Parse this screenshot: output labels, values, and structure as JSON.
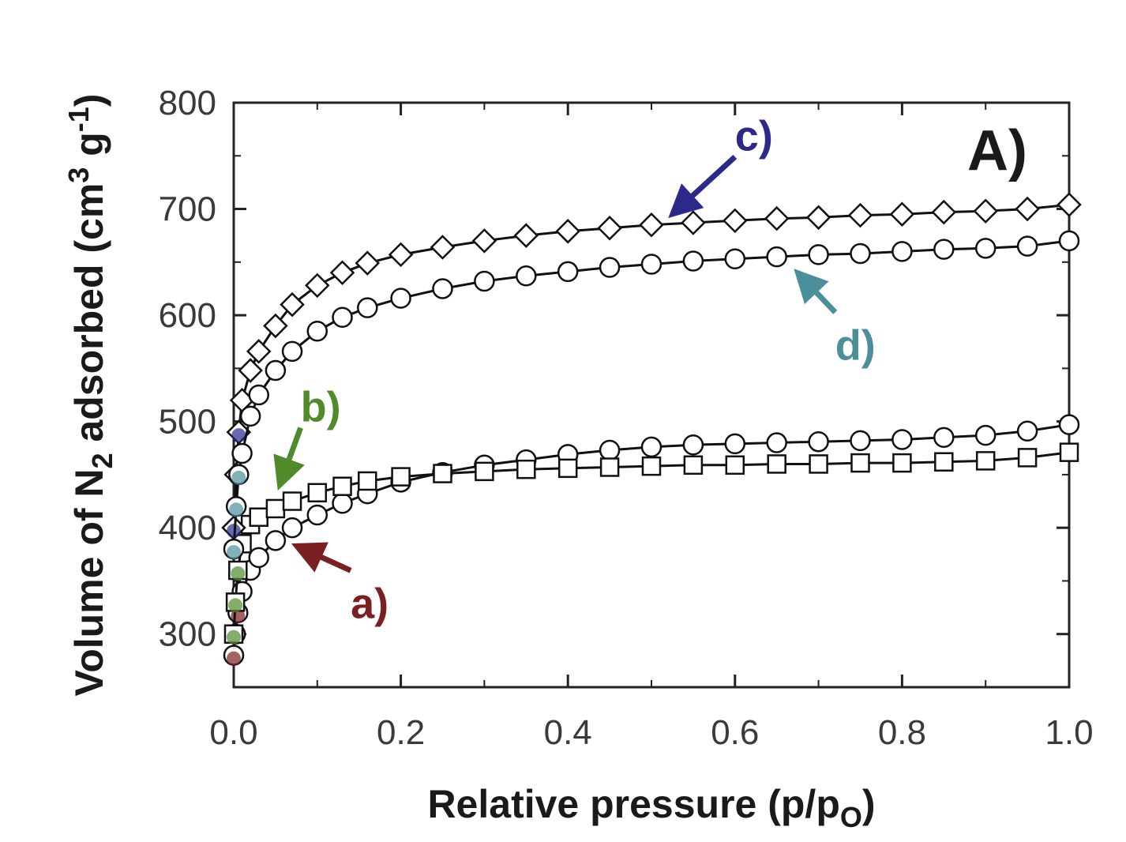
{
  "chart_data": {
    "type": "scatter",
    "title": "",
    "panel_label": "A)",
    "xlabel": "Relative pressure (p/p",
    "xlabel_sub": "O",
    "xlabel_end": ")",
    "ylabel": "Volume of N",
    "ylabel_sub": "2",
    "ylabel_mid": " adsorbed (cm",
    "ylabel_sup1": "3",
    "ylabel_mid2": " g",
    "ylabel_sup2": "-1",
    "ylabel_end": ")",
    "xlim": [
      0.0,
      1.0
    ],
    "ylim": [
      250,
      800
    ],
    "xticks": [
      0.0,
      0.2,
      0.4,
      0.6,
      0.8,
      1.0
    ],
    "xtick_labels": [
      "0.0",
      "0.2",
      "0.4",
      "0.6",
      "0.8",
      "1.0"
    ],
    "yticks": [
      300,
      400,
      500,
      600,
      700,
      800
    ],
    "ytick_labels": [
      "300",
      "400",
      "500",
      "600",
      "700",
      "800"
    ],
    "grid": false,
    "series": [
      {
        "id": "a",
        "label": "a)",
        "marker": "circle",
        "color": "#7a1f22",
        "x": [
          0.0,
          0.002,
          0.005,
          0.01,
          0.02,
          0.03,
          0.05,
          0.07,
          0.1,
          0.13,
          0.16,
          0.2,
          0.25,
          0.3,
          0.35,
          0.4,
          0.45,
          0.5,
          0.55,
          0.6,
          0.65,
          0.7,
          0.75,
          0.8,
          0.85,
          0.9,
          0.95,
          1.0
        ],
        "y": [
          280,
          300,
          320,
          340,
          360,
          372,
          388,
          400,
          412,
          423,
          432,
          443,
          452,
          459,
          464,
          469,
          473,
          476,
          478,
          479,
          480,
          481,
          482,
          483,
          485,
          487,
          491,
          497
        ]
      },
      {
        "id": "b",
        "label": "b)",
        "marker": "square",
        "color": "#4f8a2b",
        "x": [
          0.0,
          0.002,
          0.005,
          0.01,
          0.02,
          0.03,
          0.05,
          0.07,
          0.1,
          0.13,
          0.16,
          0.2,
          0.25,
          0.3,
          0.35,
          0.4,
          0.45,
          0.5,
          0.55,
          0.6,
          0.65,
          0.7,
          0.75,
          0.8,
          0.85,
          0.9,
          0.95,
          1.0
        ],
        "y": [
          300,
          330,
          360,
          385,
          403,
          410,
          418,
          425,
          433,
          439,
          444,
          448,
          451,
          453,
          455,
          456,
          457,
          458,
          459,
          459,
          460,
          460,
          461,
          461,
          462,
          463,
          466,
          471
        ]
      },
      {
        "id": "c",
        "label": "c)",
        "marker": "diamond",
        "color": "#2b2a8a",
        "x": [
          0.0,
          0.003,
          0.006,
          0.01,
          0.02,
          0.03,
          0.05,
          0.07,
          0.1,
          0.13,
          0.16,
          0.2,
          0.25,
          0.3,
          0.35,
          0.4,
          0.45,
          0.5,
          0.55,
          0.6,
          0.65,
          0.7,
          0.75,
          0.8,
          0.85,
          0.9,
          0.95,
          1.0
        ],
        "y": [
          400,
          450,
          490,
          520,
          548,
          566,
          590,
          610,
          628,
          640,
          649,
          657,
          664,
          670,
          675,
          679,
          682,
          685,
          687,
          689,
          691,
          692,
          694,
          695,
          697,
          698,
          700,
          704
        ]
      },
      {
        "id": "d",
        "label": "d)",
        "marker": "circle",
        "color": "#4b8f9a",
        "x": [
          0.0,
          0.003,
          0.006,
          0.01,
          0.02,
          0.03,
          0.05,
          0.07,
          0.1,
          0.13,
          0.16,
          0.2,
          0.25,
          0.3,
          0.35,
          0.4,
          0.45,
          0.5,
          0.55,
          0.6,
          0.65,
          0.7,
          0.75,
          0.8,
          0.85,
          0.9,
          0.95,
          1.0
        ],
        "y": [
          380,
          420,
          450,
          470,
          505,
          525,
          548,
          566,
          585,
          598,
          607,
          616,
          625,
          632,
          637,
          641,
          645,
          648,
          651,
          653,
          655,
          657,
          658,
          660,
          662,
          663,
          665,
          670
        ]
      }
    ],
    "annotations": [
      {
        "text": "a)",
        "color": "#7a1f22",
        "x": 0.14,
        "y": 330,
        "arrow_to_x": 0.075,
        "arrow_to_y": 383
      },
      {
        "text": "b)",
        "color": "#4f8a2b",
        "x": 0.08,
        "y": 500,
        "arrow_to_x": 0.055,
        "arrow_to_y": 440
      },
      {
        "text": "c)",
        "color": "#2b2a8a",
        "x": 0.6,
        "y": 755,
        "arrow_to_x": 0.525,
        "arrow_to_y": 695
      },
      {
        "text": "d)",
        "color": "#4b8f9a",
        "x": 0.72,
        "y": 573,
        "arrow_to_x": 0.675,
        "arrow_to_y": 640
      }
    ]
  }
}
